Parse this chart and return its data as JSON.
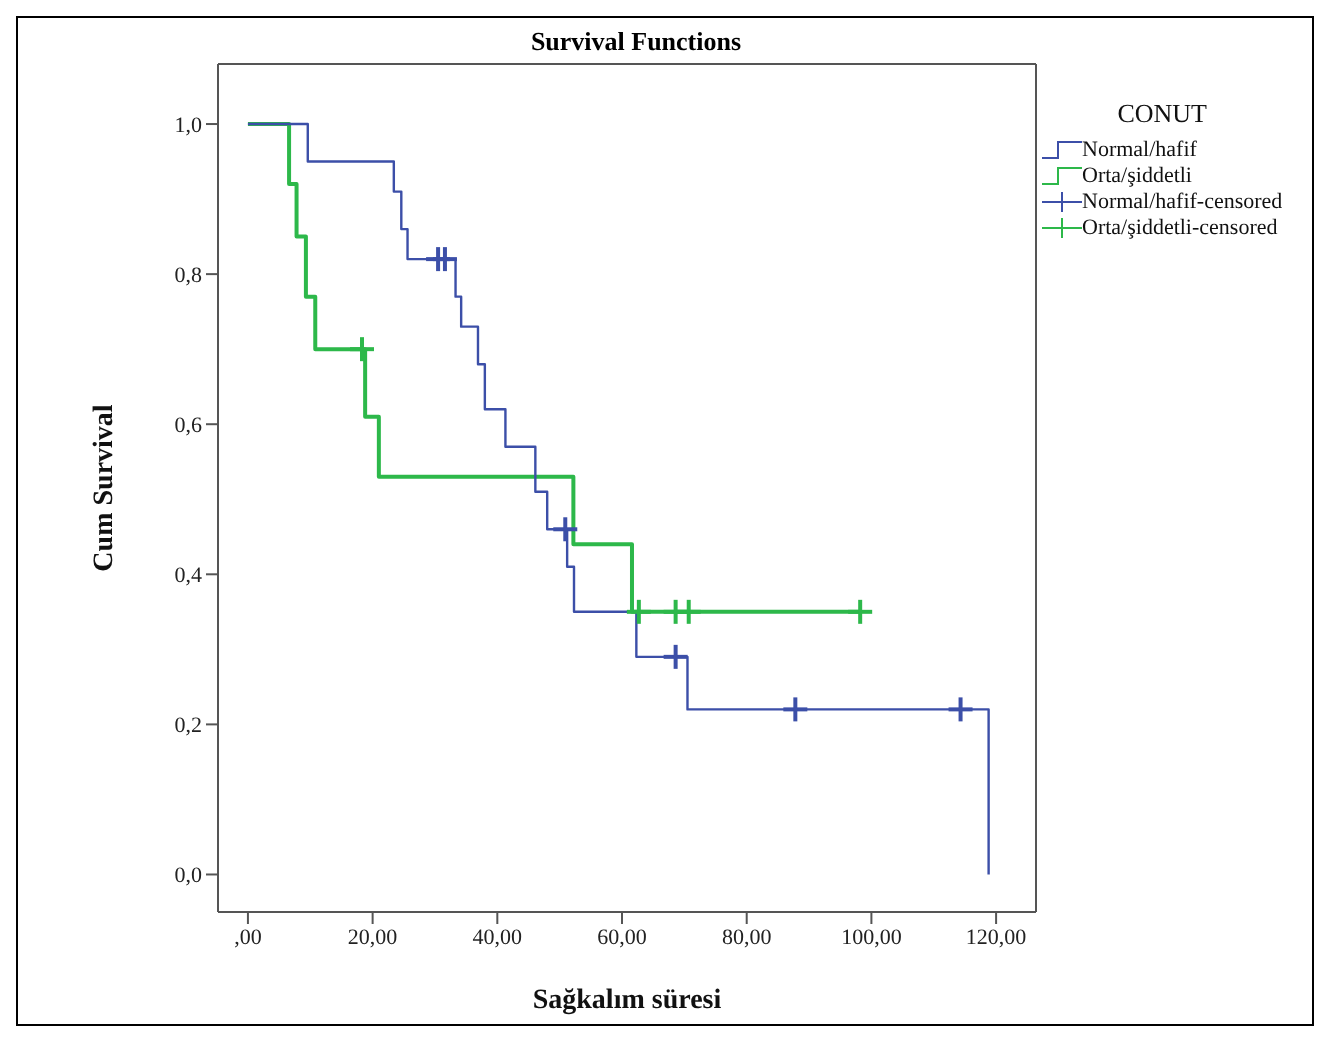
{
  "chart_data": {
    "type": "step",
    "title": "Survival Functions",
    "xlabel": "Sağkalım süresi",
    "ylabel": "Cum Survival",
    "legend_title": "CONUT",
    "legend": "top right",
    "grid": false,
    "line_style": "solid",
    "xlim": [
      -4.8,
      126.4
    ],
    "ylim": [
      -0.05,
      1.08
    ],
    "xticks": [
      {
        "value": 0,
        "label": ",00"
      },
      {
        "value": 20,
        "label": "20,00"
      },
      {
        "value": 40,
        "label": "40,00"
      },
      {
        "value": 60,
        "label": "60,00"
      },
      {
        "value": 80,
        "label": "80,00"
      },
      {
        "value": 100,
        "label": "100,00"
      },
      {
        "value": 120,
        "label": "120,00"
      }
    ],
    "yticks": [
      {
        "value": 0,
        "label": "0,0"
      },
      {
        "value": 0.2,
        "label": "0,2"
      },
      {
        "value": 0.4,
        "label": "0,4"
      },
      {
        "value": 0.6,
        "label": "0,6"
      },
      {
        "value": 0.8,
        "label": "0,8"
      },
      {
        "value": 1,
        "label": "1,0"
      }
    ],
    "series": [
      {
        "name": "Normal/hafif",
        "color": "#3c4fa8",
        "x": [
          0,
          9.6,
          23.4,
          24.6,
          25.6,
          33.3,
          34.2,
          36.9,
          38,
          41.3,
          46.1,
          48,
          51.2,
          52.3,
          62.3,
          70.5,
          118.8
        ],
        "values": [
          1,
          0.95,
          0.91,
          0.86,
          0.82,
          0.77,
          0.73,
          0.68,
          0.62,
          0.57,
          0.51,
          0.46,
          0.41,
          0.35,
          0.29,
          0.22,
          0
        ]
      },
      {
        "name": "Orta/şiddetli",
        "color": "#2db84a",
        "x": [
          0,
          6.6,
          7.8,
          9.3,
          10.8,
          18.8,
          21,
          52.2,
          61.6,
          98.2
        ],
        "values": [
          1,
          0.92,
          0.85,
          0.77,
          0.7,
          0.61,
          0.53,
          0.44,
          0.35,
          0.35
        ]
      },
      {
        "name": "Normal/hafif-censored",
        "type": "scatter",
        "marker": "cross",
        "color": "#3c4fa8",
        "x": [
          30.5,
          31.6,
          50.9,
          68.6,
          87.8,
          114.3
        ],
        "values": [
          0.82,
          0.82,
          0.46,
          0.29,
          0.22,
          0.22
        ]
      },
      {
        "name": "Orta/şiddetli-censored",
        "type": "scatter",
        "marker": "cross",
        "color": "#2db84a",
        "x": [
          18.3,
          62.7,
          68.6,
          70.7,
          98.2
        ],
        "values": [
          0.7,
          0.35,
          0.35,
          0.35,
          0.35
        ]
      }
    ]
  }
}
